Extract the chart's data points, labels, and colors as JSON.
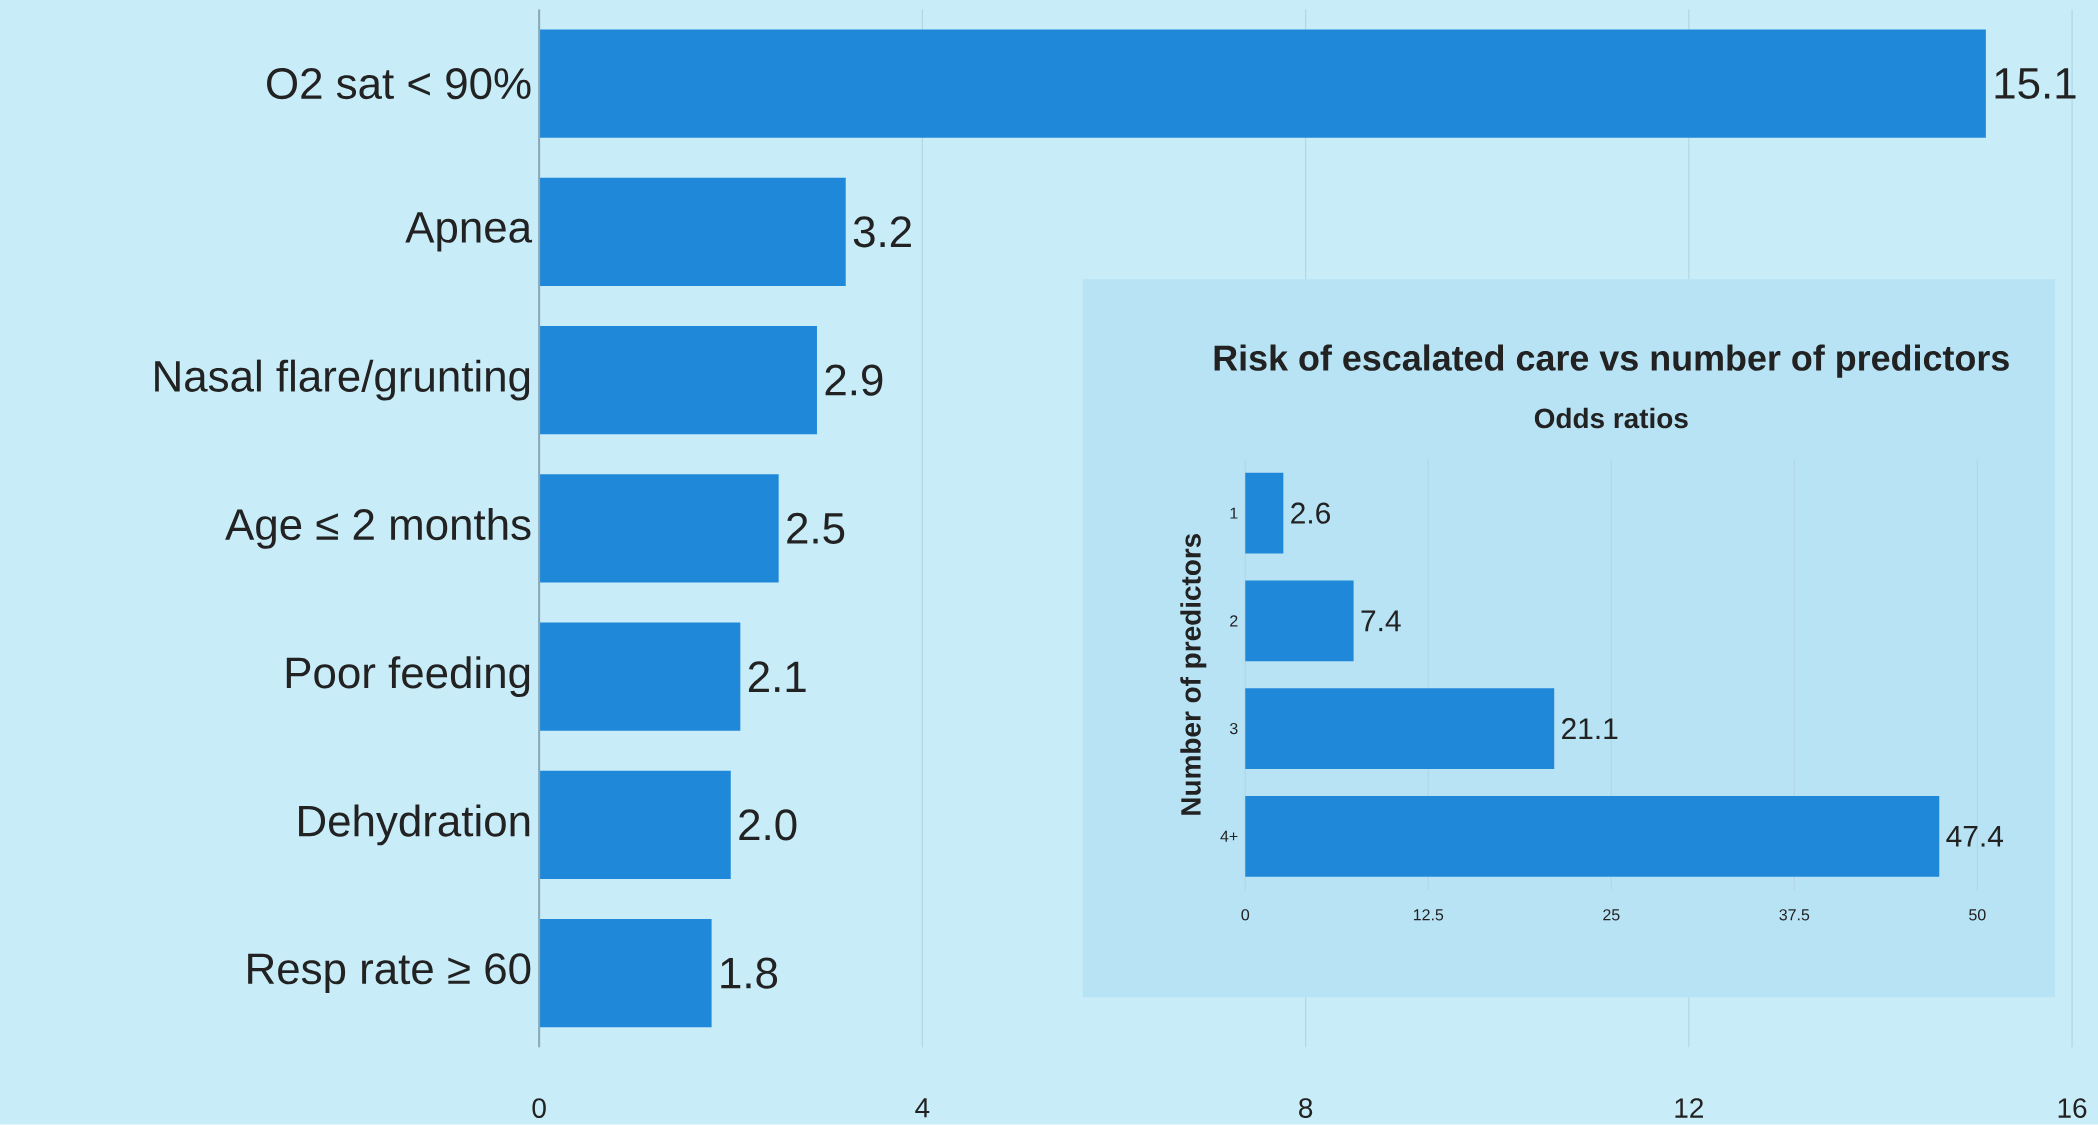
{
  "chart_data": [
    {
      "type": "bar",
      "orientation": "horizontal",
      "categories": [
        "O2 sat < 90%",
        "Apnea",
        "Nasal flare/grunting",
        "Age ≤ 2 months",
        "Poor feeding",
        "Dehydration",
        "Resp rate ≥ 60"
      ],
      "values": [
        15.1,
        3.2,
        2.9,
        2.5,
        2.1,
        2.0,
        1.8
      ],
      "value_labels": [
        "15.1",
        "3.2",
        "2.9",
        "2.5",
        "2.1",
        "2.0",
        "1.8"
      ],
      "color": "#1f88d9",
      "xlim": [
        0,
        16
      ],
      "xticks": [
        0,
        4,
        8,
        12,
        16
      ],
      "grid": "x"
    },
    {
      "type": "bar",
      "orientation": "horizontal",
      "title": "Risk of escalated care vs number of predictors",
      "subtitle": "Odds ratios",
      "ylabel": "Number of predictors",
      "categories": [
        "1",
        "2",
        "3",
        "4+"
      ],
      "values": [
        2.6,
        7.4,
        21.1,
        47.4
      ],
      "value_labels": [
        "2.6",
        "7.4",
        "21.1",
        "47.4"
      ],
      "color": "#1f88d9",
      "xlim": [
        0,
        50
      ],
      "xticks": [
        0,
        12.5,
        25,
        37.5,
        50
      ],
      "grid": "x"
    }
  ]
}
